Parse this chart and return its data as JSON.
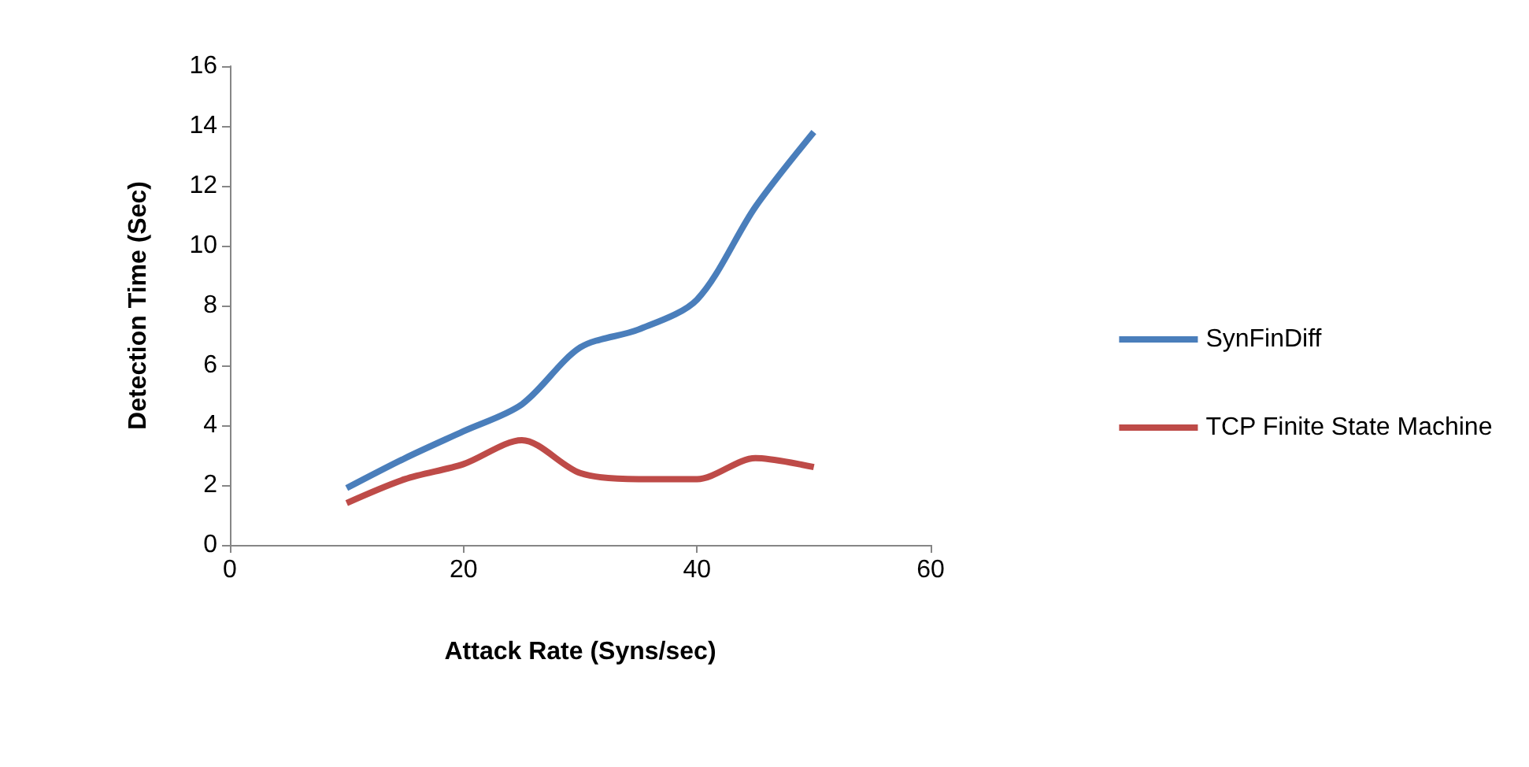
{
  "chart_data": {
    "type": "line",
    "xlabel": "Attack Rate (Syns/sec)",
    "ylabel": "Detection Time (Sec)",
    "x": [
      10,
      15,
      20,
      25,
      30,
      35,
      40,
      45,
      50
    ],
    "series": [
      {
        "name": "SynFinDiff",
        "color": "#4a7ebb",
        "values": [
          1.9,
          2.9,
          3.8,
          4.7,
          6.6,
          7.2,
          8.2,
          11.3,
          13.8
        ]
      },
      {
        "name": "TCP Finite State Machine",
        "color": "#be4b48",
        "values": [
          1.4,
          2.2,
          2.7,
          3.5,
          2.4,
          2.2,
          2.2,
          2.9,
          2.6
        ]
      }
    ],
    "xlim": [
      0,
      60
    ],
    "xticks": [
      0,
      20,
      40,
      60
    ],
    "ylim": [
      0,
      16
    ],
    "yticks": [
      0,
      2,
      4,
      6,
      8,
      10,
      12,
      14,
      16
    ],
    "grid": false,
    "legend": "right",
    "marker": "none",
    "line_style": "solid"
  }
}
